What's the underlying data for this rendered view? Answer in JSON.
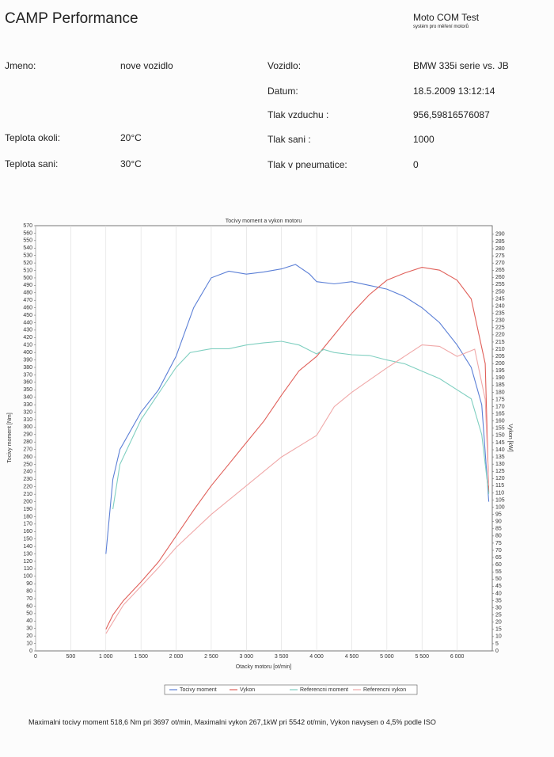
{
  "header": {
    "title": "CAMP Performance",
    "brand": "Moto COM Test",
    "brand_subtitle": "systém pro měření motorů"
  },
  "fields": [
    {
      "label": "Jmeno:",
      "value": "nove vozidlo"
    },
    {
      "label": "Teplota okoli:",
      "value": "20°C"
    },
    {
      "label": "Teplota sani:",
      "value": "30°C"
    },
    {
      "label": "Vozidlo:",
      "value": "BMW 335i serie vs. JB"
    },
    {
      "label": "Datum:",
      "value": "18.5.2009 13:12:14"
    },
    {
      "label": "Tlak vzduchu :",
      "value": "956,59816576087"
    },
    {
      "label": "Tlak sani :",
      "value": "1000"
    },
    {
      "label": "Tlak v pneumatice:",
      "value": "0"
    }
  ],
  "chart_data": {
    "type": "line",
    "title": "Tocivy moment a vykon motoru",
    "x_label": "Otacky motoru [ot/min]",
    "y_label": "Tocivy moment [Nm]",
    "y2_label": "Vykon [kW]",
    "xlim": [
      0,
      6500
    ],
    "ylim": [
      0,
      570
    ],
    "y2lim": [
      0,
      296
    ],
    "grid": "x",
    "xticks": [
      0,
      500,
      {
        "value": 1000,
        "label": "1 000"
      },
      {
        "value": 1500,
        "label": "1 500"
      },
      {
        "value": 2000,
        "label": "2 000"
      },
      {
        "value": 2500,
        "label": "2 500"
      },
      {
        "value": 3000,
        "label": "3 000"
      },
      {
        "value": 3500,
        "label": "3 500"
      },
      {
        "value": 4000,
        "label": "4 000"
      },
      {
        "value": 4500,
        "label": "4 500"
      },
      {
        "value": 5000,
        "label": "5 000"
      },
      {
        "value": 5500,
        "label": "5 500"
      },
      {
        "value": 6000,
        "label": "6 000"
      }
    ],
    "yticks": [
      0,
      10,
      20,
      30,
      40,
      50,
      60,
      70,
      80,
      90,
      100,
      110,
      120,
      130,
      140,
      150,
      160,
      170,
      180,
      190,
      200,
      210,
      220,
      230,
      240,
      250,
      260,
      270,
      280,
      290,
      300,
      310,
      320,
      330,
      340,
      350,
      360,
      370,
      380,
      390,
      400,
      410,
      420,
      430,
      440,
      450,
      460,
      470,
      480,
      490,
      500,
      510,
      520,
      530,
      540,
      550,
      560,
      570
    ],
    "y2ticks": [
      0,
      5,
      10,
      15,
      20,
      25,
      30,
      35,
      40,
      45,
      50,
      55,
      60,
      65,
      70,
      75,
      80,
      85,
      90,
      95,
      100,
      105,
      110,
      115,
      120,
      125,
      130,
      135,
      140,
      145,
      150,
      155,
      160,
      165,
      170,
      175,
      180,
      185,
      190,
      195,
      200,
      205,
      210,
      215,
      220,
      225,
      230,
      235,
      240,
      245,
      250,
      255,
      260,
      265,
      270,
      275,
      280,
      285,
      290
    ],
    "series": [
      {
        "name": "Tocivy moment",
        "color": "#5b7fd6",
        "x": [
          1000,
          1100,
          1200,
          1500,
          1750,
          2000,
          2250,
          2500,
          2750,
          3000,
          3250,
          3500,
          3700,
          3900,
          4000,
          4250,
          4500,
          4750,
          5000,
          5250,
          5500,
          5750,
          6000,
          6200,
          6350,
          6450
        ],
        "values": [
          130,
          230,
          270,
          320,
          350,
          395,
          460,
          500,
          509,
          505,
          508,
          512,
          518,
          505,
          495,
          492,
          495,
          490,
          485,
          475,
          460,
          440,
          410,
          380,
          330,
          200
        ]
      },
      {
        "name": "Vykon",
        "color": "#e0605a",
        "axis": "y2",
        "x": [
          1000,
          1100,
          1250,
          1500,
          1750,
          2000,
          2250,
          2500,
          2750,
          3000,
          3250,
          3500,
          3750,
          4000,
          4250,
          4500,
          4750,
          5000,
          5250,
          5500,
          5750,
          6000,
          6200,
          6400,
          6450
        ],
        "values": [
          15,
          25,
          35,
          48,
          62,
          80,
          98,
          115,
          130,
          145,
          160,
          178,
          195,
          205,
          220,
          235,
          248,
          258,
          263,
          267,
          265,
          258,
          245,
          200,
          110
        ]
      },
      {
        "name": "Referencni moment",
        "color": "#7fcfc0",
        "x": [
          1100,
          1200,
          1500,
          1750,
          2000,
          2200,
          2500,
          2750,
          3000,
          3250,
          3500,
          3750,
          4000,
          4100,
          4250,
          4500,
          4750,
          5000,
          5250,
          5500,
          5750,
          6000,
          6200,
          6350,
          6450
        ],
        "values": [
          190,
          250,
          310,
          345,
          380,
          400,
          405,
          405,
          410,
          413,
          415,
          410,
          398,
          404,
          400,
          397,
          396,
          390,
          385,
          375,
          365,
          350,
          338,
          290,
          210
        ]
      },
      {
        "name": "Referencni vykon",
        "color": "#f0a8a8",
        "axis": "y2",
        "x": [
          1000,
          1250,
          1500,
          1750,
          2000,
          2500,
          3000,
          3500,
          4000,
          4250,
          4500,
          5000,
          5250,
          5500,
          5750,
          6000,
          6250,
          6400,
          6450
        ],
        "values": [
          12,
          32,
          45,
          58,
          72,
          95,
          115,
          135,
          150,
          170,
          180,
          197,
          205,
          213,
          212,
          205,
          210,
          175,
          115
        ]
      }
    ]
  },
  "footer": "Maximalni tocivy moment 518,6 Nm pri 3697 ot/min,  Maximalni vykon 267,1kW pri 5542 ot/min,  Vykon navysen o 4,5% podle ISO"
}
